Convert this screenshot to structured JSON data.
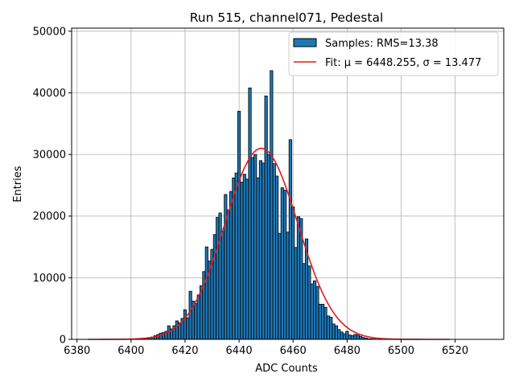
{
  "chart_data": {
    "type": "bar",
    "title": "Run 515, channel071, Pedestal",
    "xlabel": "ADC Counts",
    "ylabel": "Entries",
    "xlim": [
      6378,
      6538
    ],
    "ylim": [
      0,
      50500
    ],
    "x_ticks": [
      6380,
      6400,
      6420,
      6440,
      6460,
      6480,
      6500,
      6520
    ],
    "y_ticks": [
      0,
      10000,
      20000,
      30000,
      40000,
      50000
    ],
    "grid": true,
    "legend_position": "top-right",
    "colors": {
      "bars": "#1f77b4",
      "bar_edge": "#000000",
      "fit": "#e41a1c",
      "grid": "#b0b0b0"
    },
    "histogram": {
      "name": "Samples: RMS=13.38",
      "bin_width": 1,
      "x": [
        6405,
        6406,
        6407,
        6408,
        6409,
        6410,
        6411,
        6412,
        6413,
        6414,
        6415,
        6416,
        6417,
        6418,
        6419,
        6420,
        6421,
        6422,
        6423,
        6424,
        6425,
        6426,
        6427,
        6428,
        6429,
        6430,
        6431,
        6432,
        6433,
        6434,
        6435,
        6436,
        6437,
        6438,
        6439,
        6440,
        6441,
        6442,
        6443,
        6444,
        6445,
        6446,
        6447,
        6448,
        6449,
        6450,
        6451,
        6452,
        6453,
        6454,
        6455,
        6456,
        6457,
        6458,
        6459,
        6460,
        6461,
        6462,
        6463,
        6464,
        6465,
        6466,
        6467,
        6468,
        6469,
        6470,
        6471,
        6472,
        6473,
        6474,
        6475,
        6476,
        6477,
        6478,
        6479,
        6480,
        6481,
        6482,
        6483,
        6484,
        6485,
        6486,
        6487,
        6488,
        6489,
        6490,
        6491
      ],
      "values": [
        100,
        200,
        300,
        400,
        600,
        800,
        1000,
        1100,
        1300,
        2200,
        1700,
        2200,
        3000,
        2700,
        3400,
        4800,
        3500,
        7800,
        6200,
        5800,
        7200,
        8700,
        11000,
        15000,
        12700,
        14600,
        17000,
        19800,
        20500,
        17500,
        23500,
        21000,
        24000,
        26200,
        27000,
        37000,
        25500,
        26800,
        26000,
        40800,
        29500,
        30000,
        26200,
        29000,
        28600,
        39500,
        30000,
        43600,
        28500,
        26500,
        17200,
        24600,
        24200,
        17400,
        32400,
        21500,
        14900,
        19900,
        19600,
        12300,
        16300,
        11900,
        9000,
        9500,
        8600,
        5700,
        5700,
        5200,
        3800,
        3600,
        2500,
        2200,
        1600,
        1200,
        900,
        1300,
        700,
        600,
        800,
        700,
        500,
        300,
        200,
        100,
        100,
        50,
        30
      ]
    },
    "fit": {
      "name": "Fit: μ = 6448.255, σ = 13.477",
      "mu": 6448.255,
      "sigma": 13.477,
      "amplitude": 31000,
      "x_range": [
        6384,
        6518
      ]
    }
  }
}
